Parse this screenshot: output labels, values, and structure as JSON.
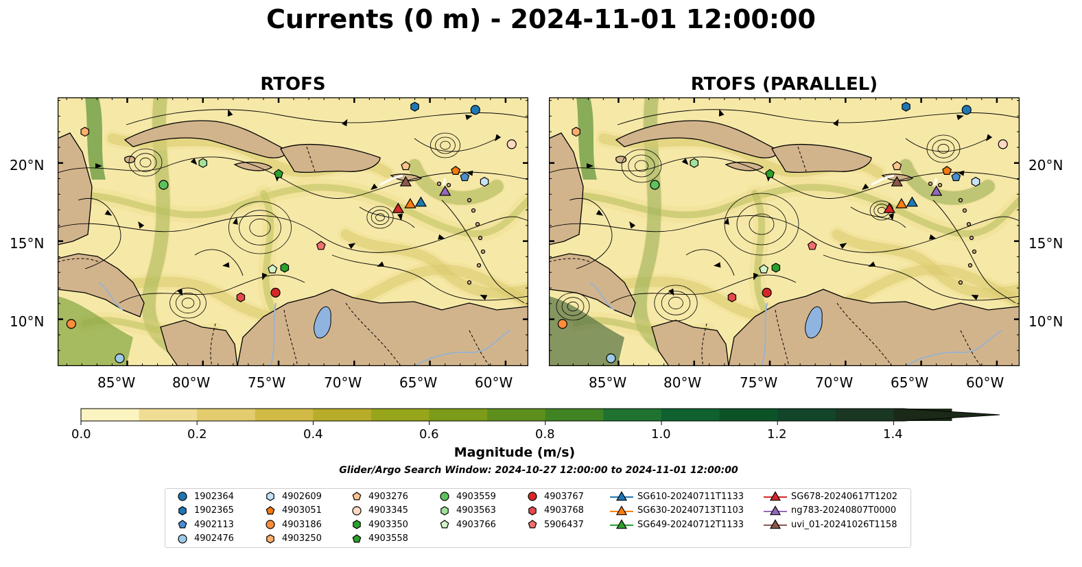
{
  "title": "Currents (0 m) - 2024-11-01 12:00:00",
  "panels": [
    {
      "title": "RTOFS"
    },
    {
      "title": "RTOFS (PARALLEL)"
    }
  ],
  "lon_ticks": [
    "85°W",
    "80°W",
    "75°W",
    "70°W",
    "65°W",
    "60°W"
  ],
  "lat_ticks": [
    "20°N",
    "15°N",
    "10°N"
  ],
  "colorbar": {
    "label": "Magnitude (m/s)",
    "ticks": [
      "0.0",
      "0.2",
      "0.4",
      "0.6",
      "0.8",
      "1.0",
      "1.2",
      "1.4"
    ],
    "colors": [
      "#fbf3c0",
      "#efdd94",
      "#e2cc6e",
      "#d1ba46",
      "#b7ad2a",
      "#97a51a",
      "#7c9b18",
      "#5e8f1d",
      "#3f8323",
      "#1f7230",
      "#0f6130",
      "#0b5327",
      "#12452a",
      "#193722",
      "#1b2a18"
    ]
  },
  "search_window": "Glider/Argo Search Window: 2024-10-27 12:00:00 to 2024-11-01 12:00:00",
  "colors": {
    "land": "#d2b48c",
    "water_body": "#8fb4e0",
    "river": "#9ab3cc"
  },
  "legend": [
    {
      "label": "1902364",
      "marker": "circle",
      "color": "#1f77b4"
    },
    {
      "label": "1902365",
      "marker": "hexagon",
      "color": "#1f77b4"
    },
    {
      "label": "4902113",
      "marker": "pentagon",
      "color": "#4a90d0"
    },
    {
      "label": "4902476",
      "marker": "circle",
      "color": "#9ecae9"
    },
    {
      "label": "4902609",
      "marker": "hexagon",
      "color": "#c6e2f7"
    },
    {
      "label": "4903051",
      "marker": "pentagon",
      "color": "#f07a10"
    },
    {
      "label": "4903186",
      "marker": "circle",
      "color": "#fd8d3c"
    },
    {
      "label": "4903250",
      "marker": "hexagon",
      "color": "#fdae6b"
    },
    {
      "label": "4903276",
      "marker": "pentagon",
      "color": "#fdc48e"
    },
    {
      "label": "4903345",
      "marker": "circle",
      "color": "#fdd9c2"
    },
    {
      "label": "4903350",
      "marker": "hexagon",
      "color": "#2ca02c"
    },
    {
      "label": "4903558",
      "marker": "pentagon",
      "color": "#2ca02c"
    },
    {
      "label": "4903559",
      "marker": "circle",
      "color": "#5dc15d"
    },
    {
      "label": "4903563",
      "marker": "hexagon",
      "color": "#a1e29a"
    },
    {
      "label": "4903766",
      "marker": "pentagon",
      "color": "#d4f4c8"
    },
    {
      "label": "4903767",
      "marker": "circle",
      "color": "#d62728"
    },
    {
      "label": "4903768",
      "marker": "hexagon",
      "color": "#e34a4a"
    },
    {
      "label": "5906437",
      "marker": "pentagon",
      "color": "#f07070"
    },
    {
      "label": "SG610-20240711T1133",
      "marker": "triangle",
      "color": "#1f77b4"
    },
    {
      "label": "SG630-20240713T1103",
      "marker": "triangle",
      "color": "#ff7f0e"
    },
    {
      "label": "SG649-20240712T1133",
      "marker": "triangle",
      "color": "#2ca02c"
    },
    {
      "label": "SG678-20240617T1202",
      "marker": "triangle",
      "color": "#d62728"
    },
    {
      "label": "ng783-20240807T0000",
      "marker": "triangle",
      "color": "#9467bd"
    },
    {
      "label": "uvi_01-20241026T1158",
      "marker": "triangle",
      "color": "#8c564b"
    }
  ],
  "markers": [
    {
      "label": "1902364",
      "lon": -62.0,
      "lat": 23.4
    },
    {
      "label": "1902365",
      "lon": -66.0,
      "lat": 23.6
    },
    {
      "label": "4902113",
      "lon": -62.7,
      "lat": 19.1
    },
    {
      "label": "4902476",
      "lon": -85.5,
      "lat": 7.5
    },
    {
      "label": "4902609",
      "lon": -61.4,
      "lat": 18.8
    },
    {
      "label": "4903051",
      "lon": -63.3,
      "lat": 19.5
    },
    {
      "label": "4903186",
      "lon": -88.7,
      "lat": 9.7
    },
    {
      "label": "4903250",
      "lon": -87.8,
      "lat": 22.0
    },
    {
      "label": "4903276",
      "lon": -66.6,
      "lat": 19.8
    },
    {
      "label": "4903345",
      "lon": -59.6,
      "lat": 21.2
    },
    {
      "label": "4903350",
      "lon": -74.6,
      "lat": 13.3
    },
    {
      "label": "4903558",
      "lon": -75.0,
      "lat": 19.3
    },
    {
      "label": "4903559",
      "lon": -82.6,
      "lat": 18.6
    },
    {
      "label": "4903563",
      "lon": -80.0,
      "lat": 20.0
    },
    {
      "label": "4903766",
      "lon": -75.4,
      "lat": 13.2
    },
    {
      "label": "4903767",
      "lon": -75.2,
      "lat": 11.7
    },
    {
      "label": "4903768",
      "lon": -77.5,
      "lat": 11.4
    },
    {
      "label": "5906437",
      "lon": -72.2,
      "lat": 14.7
    }
  ],
  "gliders": [
    {
      "label": "SG610-20240711T1133",
      "lon": -65.6,
      "lat": 17.5
    },
    {
      "label": "SG630-20240713T1103",
      "lon": -66.3,
      "lat": 17.4
    },
    {
      "label": "SG649-20240712T1133",
      "lon": -67.1,
      "lat": 17.1
    },
    {
      "label": "SG678-20240617T1202",
      "lon": -67.1,
      "lat": 17.1
    },
    {
      "label": "ng783-20240807T0000",
      "lon": -64.0,
      "lat": 18.2
    },
    {
      "label": "uvi_01-20241026T1158",
      "lon": -66.6,
      "lat": 18.8
    }
  ]
}
